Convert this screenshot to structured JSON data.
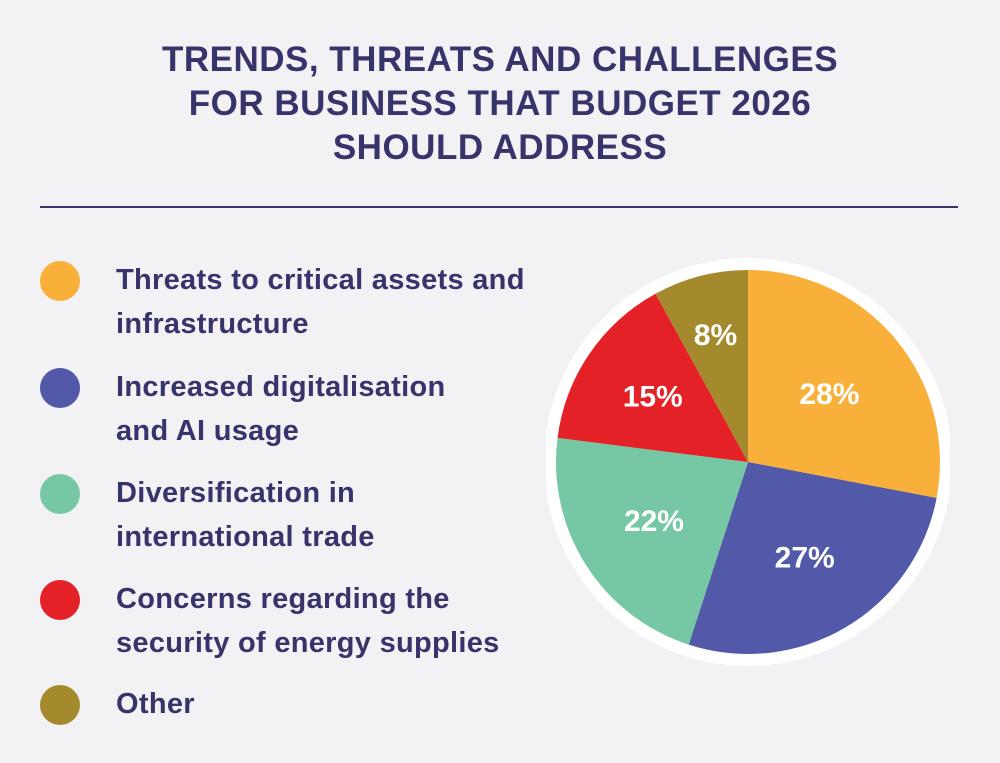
{
  "title": {
    "lines": [
      "TRENDS, THREATS AND CHALLENGES",
      "FOR BUSINESS THAT BUDGET 2026",
      "SHOULD ADDRESS"
    ]
  },
  "chart_data": {
    "type": "pie",
    "title": "TRENDS, THREATS AND CHALLENGES FOR BUSINESS THAT BUDGET 2026 SHOULD ADDRESS",
    "legend_position": "left",
    "slices": [
      {
        "label": "Threats to critical assets and infrastructure",
        "label_lines": [
          "Threats to critical assets and",
          "infrastructure"
        ],
        "value": 28,
        "value_label": "28%",
        "color": "#f9b03a"
      },
      {
        "label": "Increased digitalisation and AI usage",
        "label_lines": [
          "Increased digitalisation",
          "and AI usage"
        ],
        "value": 27,
        "value_label": "27%",
        "color": "#5159a8"
      },
      {
        "label": "Diversification in international trade",
        "label_lines": [
          "Diversification in",
          "international trade"
        ],
        "value": 22,
        "value_label": "22%",
        "color": "#76c8a4"
      },
      {
        "label": "Concerns regarding the security of energy supplies",
        "label_lines": [
          "Concerns regarding the",
          "security of energy supplies"
        ],
        "value": 15,
        "value_label": "15%",
        "color": "#e32127"
      },
      {
        "label": "Other",
        "label_lines": [
          "Other"
        ],
        "value": 8,
        "value_label": "8%",
        "color": "#a58a2d"
      }
    ]
  },
  "colors": {
    "background": "#f2f1f3",
    "text": "#37336b",
    "pie_border": "#ffffff"
  }
}
